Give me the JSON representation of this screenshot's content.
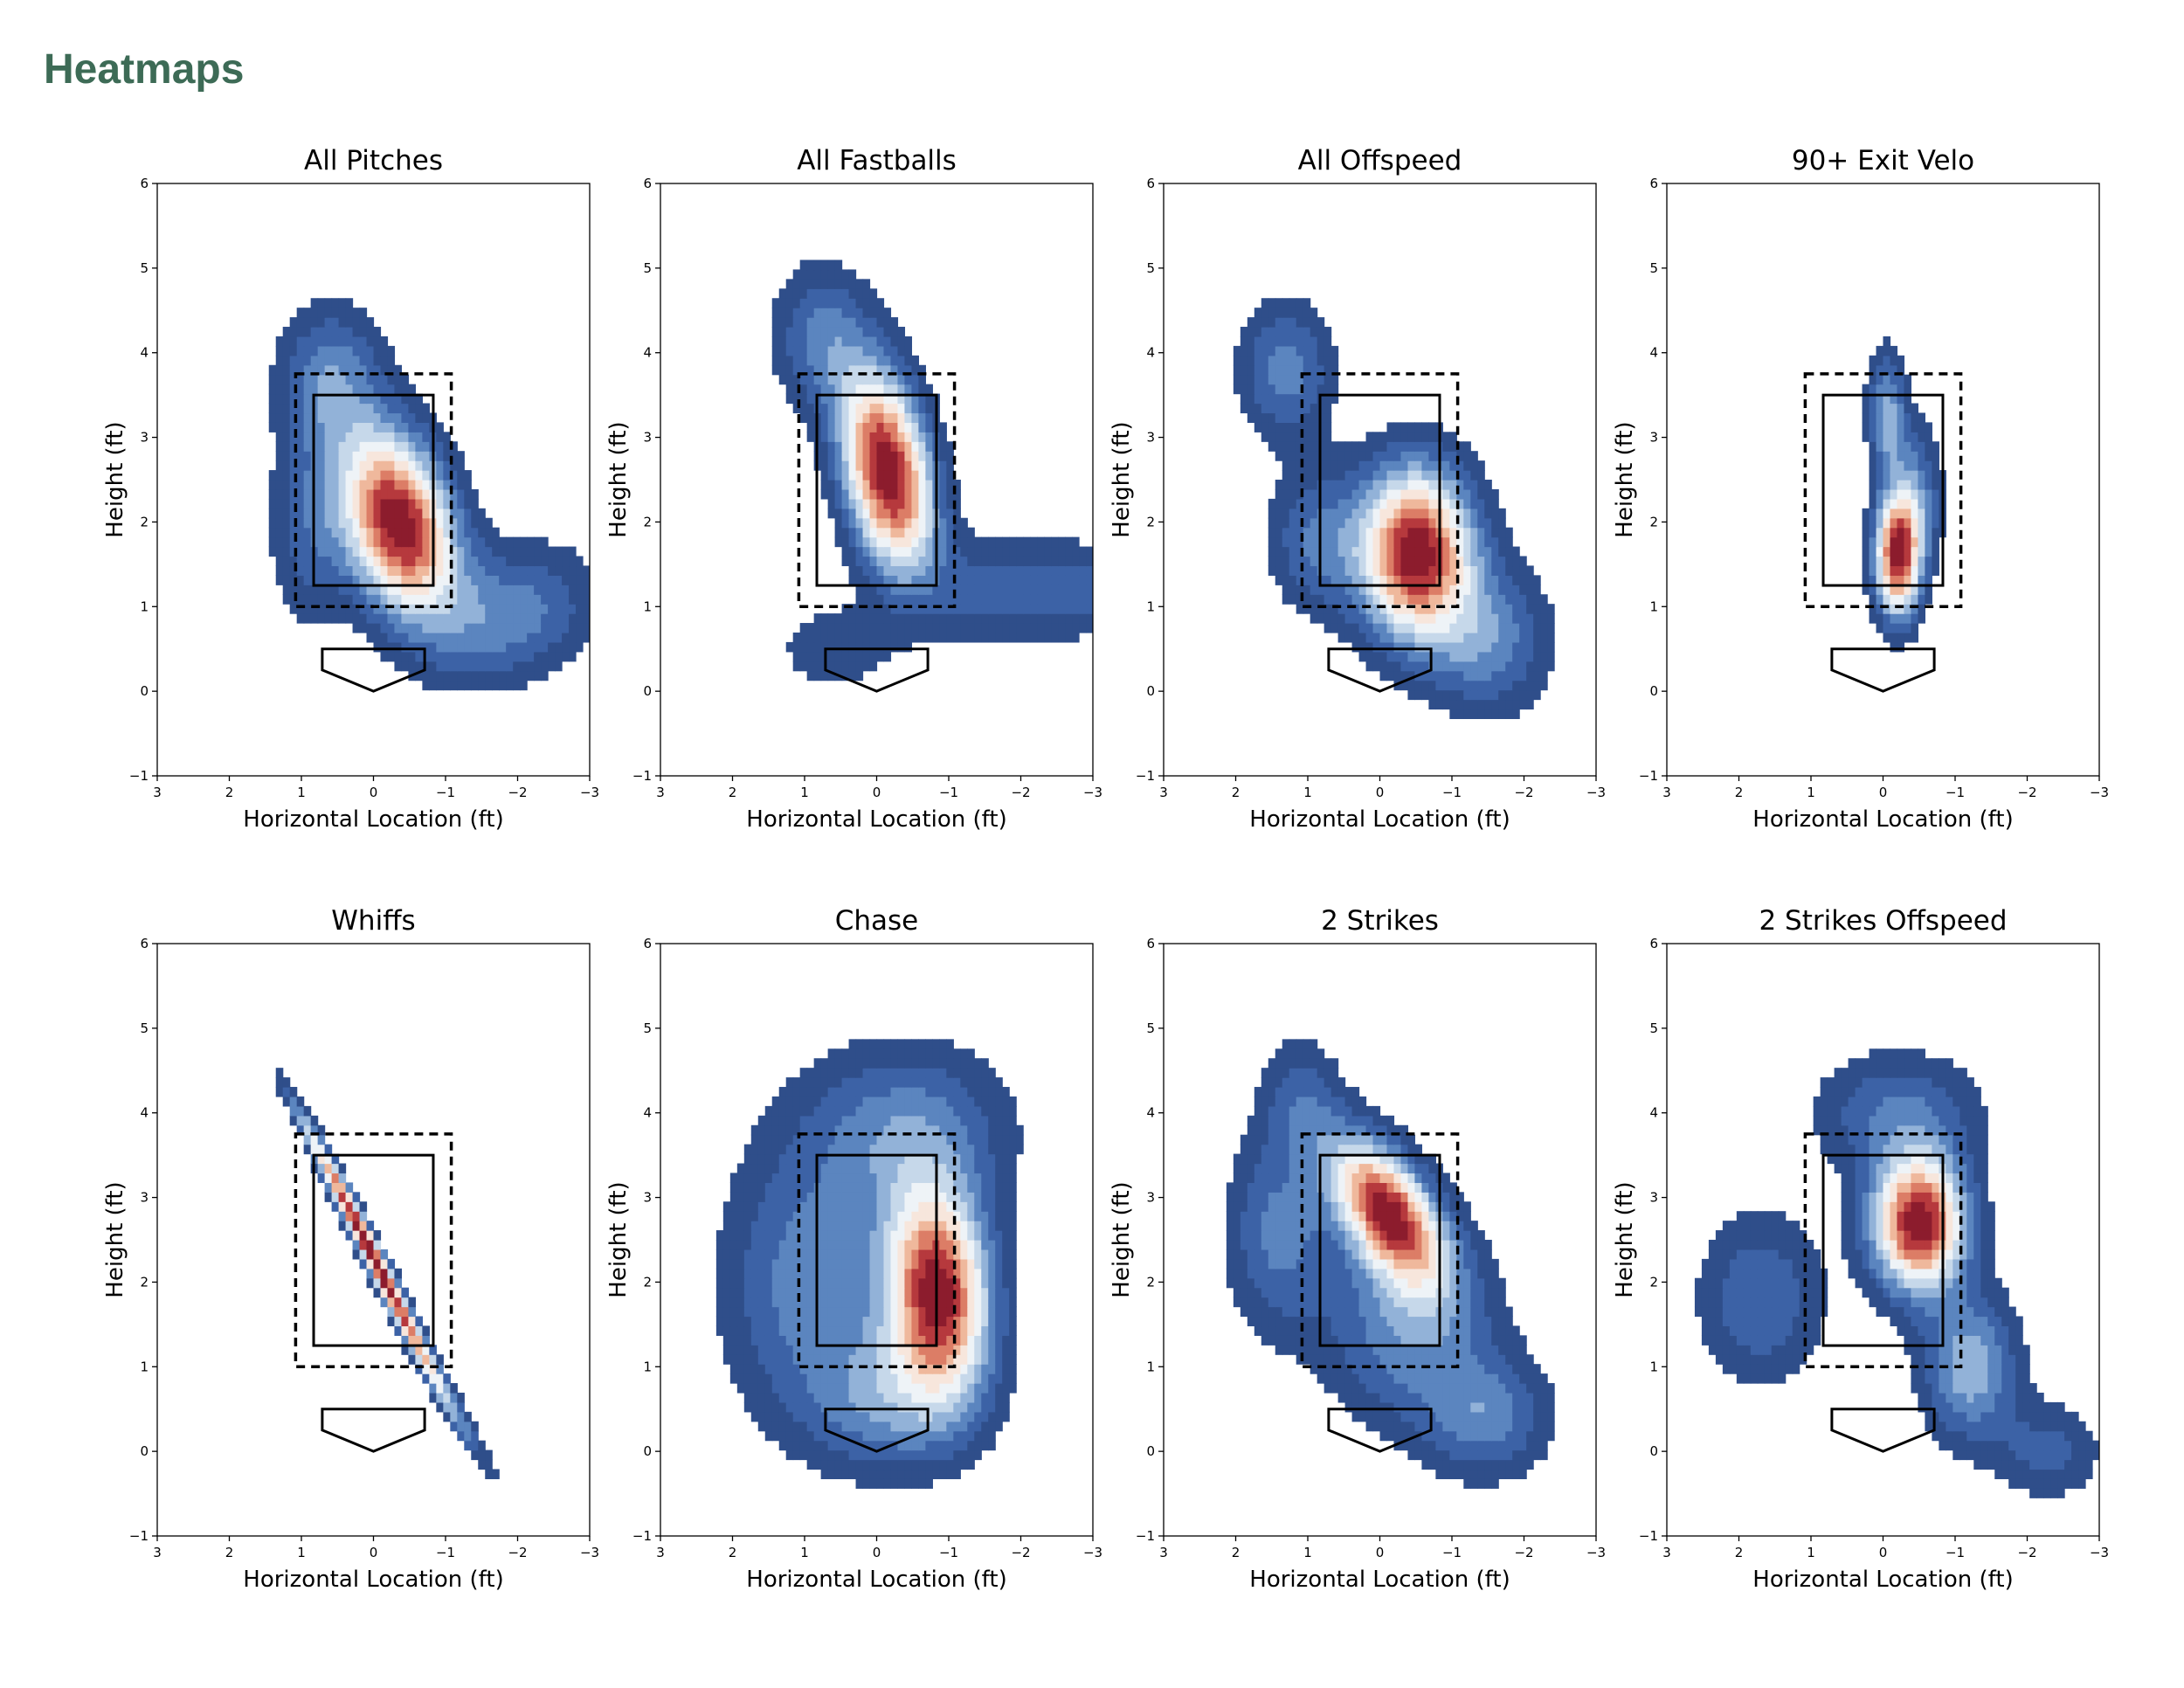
{
  "page": {
    "title": "Heatmaps",
    "title_color": "#3d6b56"
  },
  "colormap": [
    "#2f4e8a",
    "#3c62a6",
    "#5b85bf",
    "#92b2d8",
    "#c6d8ea",
    "#eef3f7",
    "#f7e6dc",
    "#efb89c",
    "#dc7d66",
    "#b6393d",
    "#8c1c2d"
  ],
  "chart_data": [
    {
      "type": "heatmap",
      "title": "All Pitches",
      "xlabel": "Horizontal Location (ft)",
      "ylabel": "Height (ft)",
      "xlim": [
        3,
        -3
      ],
      "ylim": [
        -1,
        6
      ],
      "xticks": [
        "3",
        "2",
        "1",
        "0",
        "−1",
        "−2",
        "−3"
      ],
      "yticks": [
        "−1",
        "0",
        "1",
        "2",
        "3",
        "4",
        "5",
        "6"
      ],
      "strike_zone": {
        "x": [
          -0.83,
          0.83
        ],
        "y": [
          1.25,
          3.5
        ]
      },
      "shadow_zone": {
        "x": [
          -1.08,
          1.08
        ],
        "y": [
          1.0,
          3.75
        ]
      },
      "home_plate": [
        [
          -0.71,
          0.5
        ],
        [
          0.71,
          0.5
        ],
        [
          0.71,
          0.25
        ],
        [
          0,
          0
        ],
        [
          -0.71,
          0.25
        ]
      ],
      "density": [
        {
          "x": -0.35,
          "y": 2.0,
          "sx": 0.55,
          "sy": 0.75,
          "rho": 0.3,
          "w": 1.0
        },
        {
          "x": 0.6,
          "y": 3.7,
          "sx": 0.5,
          "sy": 0.6,
          "rho": 0,
          "w": 0.3
        },
        {
          "x": -1.9,
          "y": 0.9,
          "sx": 0.8,
          "sy": 0.55,
          "rho": -0.2,
          "w": 0.3
        },
        {
          "x": 0.9,
          "y": 1.9,
          "sx": 0.4,
          "sy": 0.8,
          "rho": 0,
          "w": 0.2
        }
      ]
    },
    {
      "type": "heatmap",
      "title": "All Fastballs",
      "xlabel": "Horizontal Location (ft)",
      "ylabel": "Height (ft)",
      "xlim": [
        3,
        -3
      ],
      "ylim": [
        -1,
        6
      ],
      "xticks": [
        "3",
        "2",
        "1",
        "0",
        "−1",
        "−2",
        "−3"
      ],
      "yticks": [
        "−1",
        "0",
        "1",
        "2",
        "3",
        "4",
        "5",
        "6"
      ],
      "strike_zone": {
        "x": [
          -0.83,
          0.83
        ],
        "y": [
          1.25,
          3.5
        ]
      },
      "shadow_zone": {
        "x": [
          -1.08,
          1.08
        ],
        "y": [
          1.0,
          3.75
        ]
      },
      "home_plate": [
        [
          -0.71,
          0.5
        ],
        [
          0.71,
          0.5
        ],
        [
          0.71,
          0.25
        ],
        [
          0,
          0
        ],
        [
          -0.71,
          0.25
        ]
      ],
      "density": [
        {
          "x": -0.15,
          "y": 2.6,
          "sx": 0.45,
          "sy": 0.85,
          "rho": 0.35,
          "w": 1.0
        },
        {
          "x": 0.8,
          "y": 4.2,
          "sx": 0.45,
          "sy": 0.6,
          "rho": 0,
          "w": 0.25
        },
        {
          "x": -2.7,
          "y": 1.2,
          "sx": 0.55,
          "sy": 0.4,
          "rho": 0,
          "w": 0.22
        },
        {
          "x": -1.5,
          "y": 1.2,
          "sx": 0.5,
          "sy": 0.45,
          "rho": 0,
          "w": 0.18
        },
        {
          "x": 0.6,
          "y": 0.5,
          "sx": 0.6,
          "sy": 0.4,
          "rho": 0,
          "w": 0.14
        }
      ]
    },
    {
      "type": "heatmap",
      "title": "All Offspeed",
      "xlabel": "Horizontal Location (ft)",
      "ylabel": "Height (ft)",
      "xlim": [
        3,
        -3
      ],
      "ylim": [
        -1,
        6
      ],
      "xticks": [
        "3",
        "2",
        "1",
        "0",
        "−1",
        "−2",
        "−3"
      ],
      "yticks": [
        "−1",
        "0",
        "1",
        "2",
        "3",
        "4",
        "5",
        "6"
      ],
      "strike_zone": {
        "x": [
          -0.83,
          0.83
        ],
        "y": [
          1.25,
          3.5
        ]
      },
      "shadow_zone": {
        "x": [
          -1.08,
          1.08
        ],
        "y": [
          1.0,
          3.75
        ]
      },
      "home_plate": [
        [
          -0.71,
          0.5
        ],
        [
          0.71,
          0.5
        ],
        [
          0.71,
          0.25
        ],
        [
          0,
          0
        ],
        [
          -0.71,
          0.25
        ]
      ],
      "density": [
        {
          "x": -0.5,
          "y": 1.65,
          "sx": 0.55,
          "sy": 0.7,
          "rho": 0,
          "w": 1.0
        },
        {
          "x": 1.3,
          "y": 3.8,
          "sx": 0.45,
          "sy": 0.55,
          "rho": 0,
          "w": 0.3
        },
        {
          "x": -1.5,
          "y": 0.6,
          "sx": 0.6,
          "sy": 0.6,
          "rho": 0,
          "w": 0.3
        },
        {
          "x": 0.9,
          "y": 1.8,
          "sx": 0.45,
          "sy": 0.6,
          "rho": 0,
          "w": 0.25
        }
      ]
    },
    {
      "type": "heatmap",
      "title": "90+ Exit Velo",
      "xlabel": "Horizontal Location (ft)",
      "ylabel": "Height (ft)",
      "xlim": [
        3,
        -3
      ],
      "ylim": [
        -1,
        6
      ],
      "xticks": [
        "3",
        "2",
        "1",
        "0",
        "−1",
        "−2",
        "−3"
      ],
      "yticks": [
        "−1",
        "0",
        "1",
        "2",
        "3",
        "4",
        "5",
        "6"
      ],
      "strike_zone": {
        "x": [
          -0.83,
          0.83
        ],
        "y": [
          1.25,
          3.5
        ]
      },
      "shadow_zone": {
        "x": [
          -1.08,
          1.08
        ],
        "y": [
          1.0,
          3.75
        ]
      },
      "home_plate": [
        [
          -0.71,
          0.5
        ],
        [
          0.71,
          0.5
        ],
        [
          0.71,
          0.25
        ],
        [
          0,
          0
        ],
        [
          -0.71,
          0.25
        ]
      ],
      "density": [
        {
          "x": -0.2,
          "y": 1.6,
          "sx": 0.22,
          "sy": 0.5,
          "rho": 0,
          "w": 1.0
        },
        {
          "x": -0.05,
          "y": 3.3,
          "sx": 0.18,
          "sy": 0.5,
          "rho": 0,
          "w": 0.4
        },
        {
          "x": -0.45,
          "y": 2.3,
          "sx": 0.25,
          "sy": 0.6,
          "rho": 0,
          "w": 0.3
        }
      ]
    },
    {
      "type": "heatmap",
      "title": "Whiffs",
      "xlabel": "Horizontal Location (ft)",
      "ylabel": "Height (ft)",
      "xlim": [
        3,
        -3
      ],
      "ylim": [
        -1,
        6
      ],
      "xticks": [
        "3",
        "2",
        "1",
        "0",
        "−1",
        "−2",
        "−3"
      ],
      "yticks": [
        "−1",
        "0",
        "1",
        "2",
        "3",
        "4",
        "5",
        "6"
      ],
      "strike_zone": {
        "x": [
          -0.83,
          0.83
        ],
        "y": [
          1.25,
          3.5
        ]
      },
      "shadow_zone": {
        "x": [
          -1.08,
          1.08
        ],
        "y": [
          1.0,
          3.75
        ]
      },
      "home_plate": [
        [
          -0.71,
          0.5
        ],
        [
          0.71,
          0.5
        ],
        [
          0.71,
          0.25
        ],
        [
          0,
          0
        ],
        [
          -0.71,
          0.25
        ]
      ],
      "density": [
        {
          "x": 0.0,
          "y": 2.3,
          "sx": 0.6,
          "sy": 1.0,
          "rho": 0.985,
          "w": 1.0
        },
        {
          "x": -1.0,
          "y": 0.7,
          "sx": 0.45,
          "sy": 0.65,
          "rho": 0.97,
          "w": 0.25
        },
        {
          "x": 0.8,
          "y": 3.6,
          "sx": 0.3,
          "sy": 0.45,
          "rho": 0.97,
          "w": 0.2
        }
      ]
    },
    {
      "type": "heatmap",
      "title": "Chase",
      "xlabel": "Horizontal Location (ft)",
      "ylabel": "Height (ft)",
      "xlim": [
        3,
        -3
      ],
      "ylim": [
        -1,
        6
      ],
      "xticks": [
        "3",
        "2",
        "1",
        "0",
        "−1",
        "−2",
        "−3"
      ],
      "yticks": [
        "−1",
        "0",
        "1",
        "2",
        "3",
        "4",
        "5",
        "6"
      ],
      "strike_zone": {
        "x": [
          -0.83,
          0.83
        ],
        "y": [
          1.25,
          3.5
        ]
      },
      "shadow_zone": {
        "x": [
          -1.08,
          1.08
        ],
        "y": [
          1.0,
          3.75
        ]
      },
      "home_plate": [
        [
          -0.71,
          0.5
        ],
        [
          0.71,
          0.5
        ],
        [
          0.71,
          0.25
        ],
        [
          0,
          0
        ],
        [
          -0.71,
          0.25
        ]
      ],
      "density": [
        {
          "x": -0.85,
          "y": 1.9,
          "sx": 0.5,
          "sy": 0.85,
          "rho": 0.1,
          "w": 1.0
        },
        {
          "x": 1.0,
          "y": 2.0,
          "sx": 0.8,
          "sy": 1.1,
          "rho": 0,
          "w": 0.3
        },
        {
          "x": -0.4,
          "y": 3.8,
          "sx": 1.0,
          "sy": 0.7,
          "rho": 0,
          "w": 0.3
        },
        {
          "x": -0.2,
          "y": 0.6,
          "sx": 0.8,
          "sy": 0.6,
          "rho": 0,
          "w": 0.3
        }
      ]
    },
    {
      "type": "heatmap",
      "title": "2 Strikes",
      "xlabel": "Horizontal Location (ft)",
      "ylabel": "Height (ft)",
      "xlim": [
        3,
        -3
      ],
      "ylim": [
        -1,
        6
      ],
      "xticks": [
        "3",
        "2",
        "1",
        "0",
        "−1",
        "−2",
        "−3"
      ],
      "yticks": [
        "−1",
        "0",
        "1",
        "2",
        "3",
        "4",
        "5",
        "6"
      ],
      "strike_zone": {
        "x": [
          -0.83,
          0.83
        ],
        "y": [
          1.25,
          3.5
        ]
      },
      "shadow_zone": {
        "x": [
          -1.08,
          1.08
        ],
        "y": [
          1.0,
          3.75
        ]
      },
      "home_plate": [
        [
          -0.71,
          0.5
        ],
        [
          0.71,
          0.5
        ],
        [
          0.71,
          0.25
        ],
        [
          0,
          0
        ],
        [
          -0.71,
          0.25
        ]
      ],
      "density": [
        {
          "x": -0.1,
          "y": 2.85,
          "sx": 0.55,
          "sy": 0.6,
          "rho": 0.55,
          "w": 1.0
        },
        {
          "x": -0.4,
          "y": 1.5,
          "sx": 0.8,
          "sy": 0.8,
          "rho": 0,
          "w": 0.35
        },
        {
          "x": 1.4,
          "y": 2.6,
          "sx": 0.5,
          "sy": 0.8,
          "rho": 0,
          "w": 0.3
        },
        {
          "x": -1.5,
          "y": 0.4,
          "sx": 0.6,
          "sy": 0.5,
          "rho": 0,
          "w": 0.3
        },
        {
          "x": 1.1,
          "y": 4.2,
          "sx": 0.4,
          "sy": 0.5,
          "rho": 0,
          "w": 0.2
        }
      ]
    },
    {
      "type": "heatmap",
      "title": "2 Strikes Offspeed",
      "xlabel": "Horizontal Location (ft)",
      "ylabel": "Height (ft)",
      "xlim": [
        3,
        -3
      ],
      "ylim": [
        -1,
        6
      ],
      "xticks": [
        "3",
        "2",
        "1",
        "0",
        "−1",
        "−2",
        "−3"
      ],
      "yticks": [
        "−1",
        "0",
        "1",
        "2",
        "3",
        "4",
        "5",
        "6"
      ],
      "strike_zone": {
        "x": [
          -0.83,
          0.83
        ],
        "y": [
          1.25,
          3.5
        ]
      },
      "shadow_zone": {
        "x": [
          -1.08,
          1.08
        ],
        "y": [
          1.0,
          3.75
        ]
      },
      "home_plate": [
        [
          -0.71,
          0.5
        ],
        [
          0.71,
          0.5
        ],
        [
          0.71,
          0.25
        ],
        [
          0,
          0
        ],
        [
          -0.71,
          0.25
        ]
      ],
      "density": [
        {
          "x": -0.5,
          "y": 2.7,
          "sx": 0.45,
          "sy": 0.55,
          "rho": 0,
          "w": 1.0
        },
        {
          "x": -1.2,
          "y": 1.0,
          "sx": 0.45,
          "sy": 0.6,
          "rho": 0,
          "w": 0.4
        },
        {
          "x": 1.7,
          "y": 1.8,
          "sx": 0.6,
          "sy": 0.7,
          "rho": 0,
          "w": 0.25
        },
        {
          "x": -0.2,
          "y": 4.0,
          "sx": 0.8,
          "sy": 0.5,
          "rho": 0,
          "w": 0.25
        },
        {
          "x": -2.3,
          "y": 0.0,
          "sx": 0.5,
          "sy": 0.4,
          "rho": 0,
          "w": 0.2
        }
      ]
    }
  ]
}
